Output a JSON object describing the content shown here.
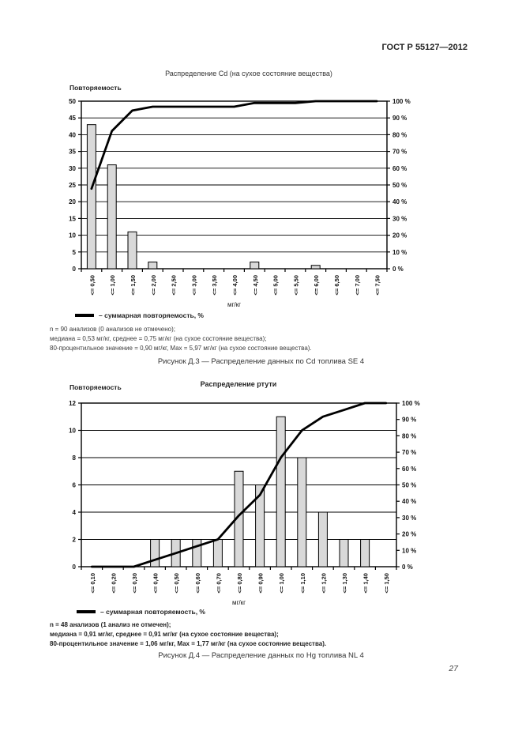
{
  "page": {
    "header": "ГОСТ Р 55127—2012",
    "page_number": "27"
  },
  "colors": {
    "bar_fill": "#d9d9d9",
    "bar_border": "#000000",
    "cumulative_line": "#000000",
    "grid": "#000000",
    "text": "#1a1a1a"
  },
  "chart_data": [
    {
      "type": "bar",
      "subtype": "histogram-with-cumulative-line",
      "title": "Распределение Cd (на сухое состояние вещества)",
      "ylabel": "Повторяемость",
      "xlabel": "мг/кг",
      "categories": [
        "<= 0,50",
        "<= 1,00",
        "<= 1,50",
        "<= 2,00",
        "<= 2,50",
        "<= 3,00",
        "<= 3,50",
        "<= 4,00",
        "<= 4,50",
        "<= 5,00",
        "<= 5,50",
        "<= 6,00",
        "<= 6,50",
        "<= 7,00",
        "<= 7,50"
      ],
      "values": [
        43,
        31,
        11,
        2,
        0,
        0,
        0,
        0,
        2,
        0,
        0,
        1,
        0,
        0,
        0
      ],
      "cumulative_percent": [
        47.8,
        82.2,
        94.4,
        96.7,
        96.7,
        96.7,
        96.7,
        96.7,
        98.9,
        98.9,
        98.9,
        100,
        100,
        100,
        100
      ],
      "ylim": [
        0,
        50
      ],
      "left_ticks": [
        "0",
        "5",
        "10",
        "15",
        "20",
        "25",
        "30",
        "35",
        "40",
        "45",
        "50"
      ],
      "right_ticks": [
        "0 %",
        "10 %",
        "20 %",
        "30 %",
        "40 %",
        "50 %",
        "60 %",
        "70 %",
        "80 %",
        "90 %",
        "100 %"
      ],
      "grid": "horizontal gridlines at left-axis ticks",
      "legend": "– суммарная повторяемость, %",
      "legend_position": "bottom-left",
      "notes": [
        "n = 90 анализов (0 анализов не отмечено);",
        "медиана = 0,53 мг/кг, среднее = 0,75 мг/кг (на сухое состояние вещества);",
        "80-процентильное значение = 0,90 мг/кг, Max = 5,97 мг/кг (на сухое состояние вещества)."
      ],
      "caption": "Рисунок Д.3 — Распределение данных по Cd топлива SE 4"
    },
    {
      "type": "bar",
      "subtype": "histogram-with-cumulative-line",
      "title": "Распределение ртути",
      "ylabel": "Повторяемость",
      "xlabel": "мг/кг",
      "categories": [
        "<= 0,10",
        "<= 0,20",
        "<= 0,30",
        "<= 0,40",
        "<= 0,50",
        "<= 0,60",
        "<= 0,70",
        "<= 0,80",
        "<= 0,90",
        "<= 1,00",
        "<= 1,10",
        "<= 1,20",
        "<= 1,30",
        "<= 1,40",
        "<= 1,50"
      ],
      "values": [
        0,
        0,
        0,
        2,
        2,
        2,
        2,
        7,
        6,
        11,
        8,
        4,
        2,
        2,
        0
      ],
      "cumulative_percent": [
        0,
        0,
        0,
        4.2,
        8.3,
        12.5,
        16.7,
        31.3,
        43.8,
        66.7,
        83.3,
        91.7,
        95.8,
        100,
        100
      ],
      "ylim": [
        0,
        12
      ],
      "left_ticks": [
        "0",
        "2",
        "4",
        "6",
        "8",
        "10",
        "12"
      ],
      "right_ticks": [
        "0 %",
        "10 %",
        "20 %",
        "30 %",
        "40 %",
        "50 %",
        "60 %",
        "70 %",
        "80 %",
        "90 %",
        "100 %"
      ],
      "grid": "horizontal gridlines at left-axis ticks",
      "legend": "– суммарная повторяемость, %",
      "legend_position": "bottom-left",
      "notes": [
        "n = 48 анализов (1 анализ не отмечен);",
        "медиана = 0,91 мг/кг, среднее = 0,91 мг/кг (на сухое состояние вещества);",
        "80-процентильное значение = 1,06 мг/кг, Max = 1,77 мг/кг (на сухое состояние вещества)."
      ],
      "caption": "Рисунок Д.4 — Распределение данных по Hg топлива NL 4"
    }
  ]
}
